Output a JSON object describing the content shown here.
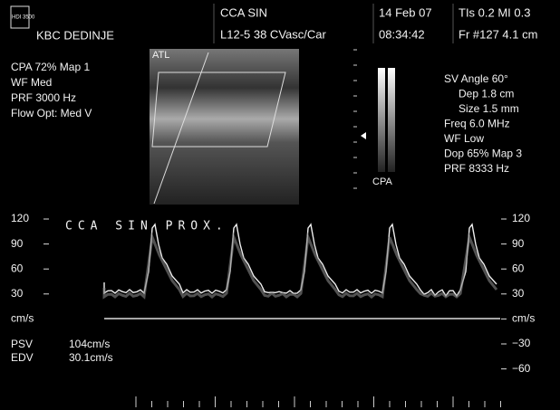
{
  "header": {
    "logo": "HDI 3500",
    "hospital": "KBC DEDINJE",
    "study": "CCA SIN",
    "probe": "L12-5 38 CVasc/Car",
    "date": "14 Feb 07",
    "time": "08:34:42",
    "tis_mi": "TIs 0.2   MI 0.3",
    "frame": "Fr #127   4.1 cm"
  },
  "left_panel": [
    "CPA  72%   Map 1",
    "WF Med",
    "PRF 3000   Hz",
    "Flow Opt: Med V"
  ],
  "image_label": "ATL",
  "color_bar_label": "CPA",
  "right_panel": [
    "SV Angle 60°",
    "Dep 1.8   cm",
    "Size 1.5   mm",
    "Freq 6.0   MHz",
    "WF Low",
    "Dop 65%   Map 3",
    "PRF 8333   Hz"
  ],
  "spectrum": {
    "label": "CCA SIN PROX.",
    "left_scale": [
      "120",
      "90",
      "60",
      "30",
      "cm/s"
    ],
    "right_scale": [
      "120",
      "90",
      "60",
      "30",
      "cm/s",
      "−30",
      "−60"
    ]
  },
  "measurements": [
    {
      "name": "PSV",
      "value": "104cm/s"
    },
    {
      "name": "EDV",
      "value": "30.1cm/s"
    }
  ]
}
